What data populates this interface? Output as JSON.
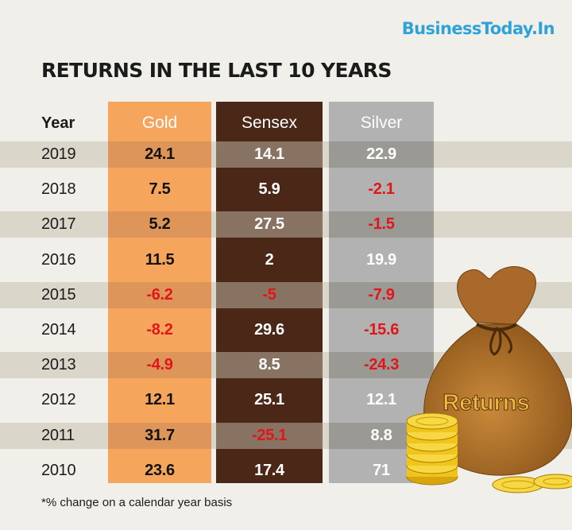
{
  "brand": "BusinessToday.In",
  "title": "RETURNS IN THE LAST 10 YEARS",
  "headers": {
    "year": "Year",
    "gold": "Gold",
    "sensex": "Sensex",
    "silver": "Silver"
  },
  "footnote": "*% change on a calendar year basis",
  "bag_label": "Returns",
  "colors": {
    "gold": "#f5a55c",
    "sensex": "#4a2717",
    "silver": "#b2b2b2",
    "negative": "#e0161b",
    "brand": "#2fa3d9"
  },
  "chart_data": {
    "type": "table",
    "columns": [
      "Year",
      "Gold",
      "Sensex",
      "Silver"
    ],
    "rows": [
      {
        "year": "2019",
        "gold": "24.1",
        "sensex": "14.1",
        "silver": "22.9"
      },
      {
        "year": "2018",
        "gold": "7.5",
        "sensex": "5.9",
        "silver": "-2.1"
      },
      {
        "year": "2017",
        "gold": "5.2",
        "sensex": "27.5",
        "silver": "-1.5"
      },
      {
        "year": "2016",
        "gold": "11.5",
        "sensex": "2",
        "silver": "19.9"
      },
      {
        "year": "2015",
        "gold": "-6.2",
        "sensex": "-5",
        "silver": "-7.9"
      },
      {
        "year": "2014",
        "gold": "-8.2",
        "sensex": "29.6",
        "silver": "-15.6"
      },
      {
        "year": "2013",
        "gold": "-4.9",
        "sensex": "8.5",
        "silver": "-24.3"
      },
      {
        "year": "2012",
        "gold": "12.1",
        "sensex": "25.1",
        "silver": "12.1"
      },
      {
        "year": "2011",
        "gold": "31.7",
        "sensex": "-25.1",
        "silver": "8.8"
      },
      {
        "year": "2010",
        "gold": "23.6",
        "sensex": "17.4",
        "silver": "71"
      }
    ]
  }
}
